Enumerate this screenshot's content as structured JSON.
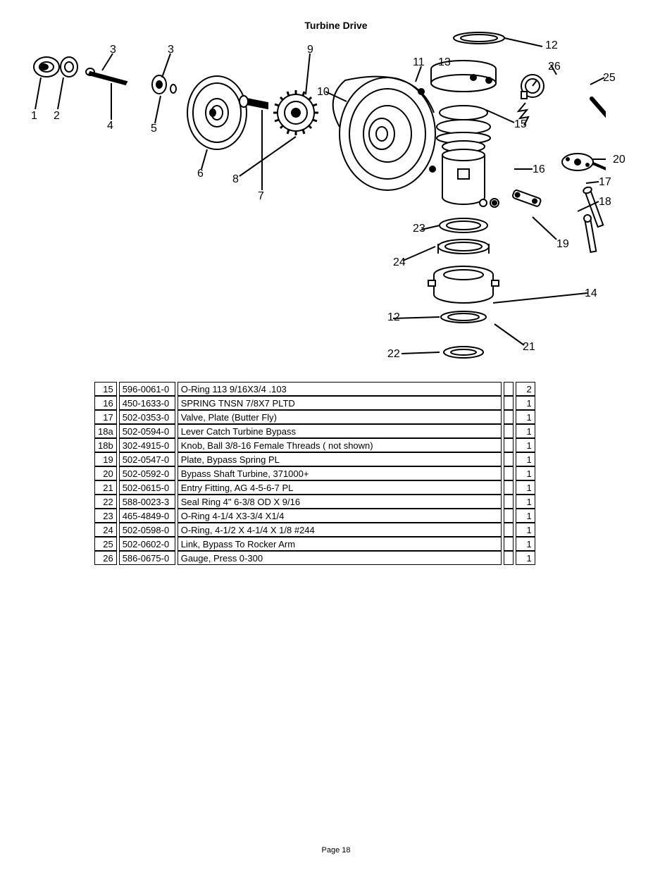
{
  "title": "Turbine Drive",
  "page_label": "Page 18",
  "callouts": [
    "1",
    "2",
    "3",
    "3",
    "4",
    "5",
    "6",
    "7",
    "8",
    "9",
    "10",
    "11",
    "12",
    "12",
    "13",
    "14",
    "15",
    "16",
    "17",
    "18",
    "19",
    "20",
    "21",
    "22",
    "23",
    "24",
    "25",
    "26"
  ],
  "rows": [
    {
      "ref": "15",
      "part": "596-0061-0",
      "desc": "O-Ring 113 9/16X3/4 .103",
      "qty": "2"
    },
    {
      "ref": "16",
      "part": "450-1633-0",
      "desc": "SPRING TNSN 7/8X7 PLTD",
      "qty": "1"
    },
    {
      "ref": "17",
      "part": "502-0353-0",
      "desc": "Valve, Plate (Butter Fly)",
      "qty": "1"
    },
    {
      "ref": "18a",
      "part": "502-0594-0",
      "desc": "Lever Catch Turbine Bypass",
      "qty": "1"
    },
    {
      "ref": "18b",
      "part": "302-4915-0",
      "desc": "Knob, Ball 3/8-16 Female Threads ( not shown)",
      "qty": "1"
    },
    {
      "ref": "19",
      "part": "502-0547-0",
      "desc": "Plate, Bypass Spring   PL",
      "qty": "1"
    },
    {
      "ref": "20",
      "part": "502-0592-0",
      "desc": "Bypass Shaft Turbine, 371000+",
      "qty": "1"
    },
    {
      "ref": "21",
      "part": "502-0615-0",
      "desc": "Entry Fitting, AG 4-5-6-7 PL",
      "qty": "1"
    },
    {
      "ref": "22",
      "part": "588-0023-3",
      "desc": "Seal Ring 4\" 6-3/8 OD X 9/16",
      "qty": "1"
    },
    {
      "ref": "23",
      "part": "465-4849-0",
      "desc": "O-Ring 4-1/4 X3-3/4 X1/4",
      "qty": "1"
    },
    {
      "ref": "24",
      "part": "502-0598-0",
      "desc": "O-Ring, 4-1/2 X 4-1/4 X 1/8 #244",
      "qty": "1"
    },
    {
      "ref": "25",
      "part": "502-0602-0",
      "desc": "Link, Bypass To Rocker Arm",
      "qty": "1"
    },
    {
      "ref": "26",
      "part": "586-0675-0",
      "desc": "Gauge, Press 0-300",
      "qty": "1"
    }
  ],
  "diagram": {
    "stroke": "#000000",
    "fill": "#ffffff"
  }
}
